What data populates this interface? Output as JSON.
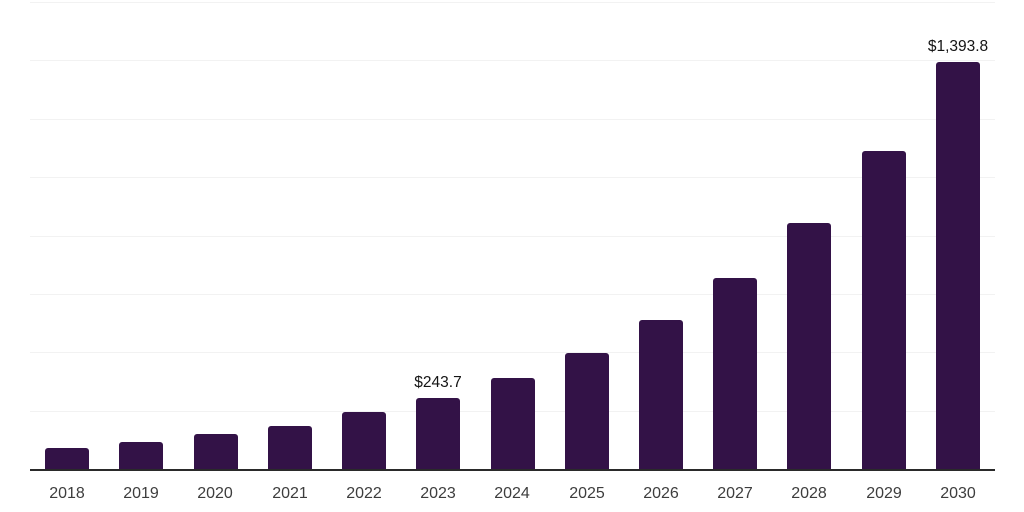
{
  "chart_data": {
    "type": "bar",
    "title": "",
    "xlabel": "",
    "ylabel": "",
    "categories": [
      "2018",
      "2019",
      "2020",
      "2021",
      "2022",
      "2023",
      "2024",
      "2025",
      "2026",
      "2027",
      "2028",
      "2029",
      "2030"
    ],
    "values": [
      71,
      93,
      120,
      146,
      194,
      243.7,
      312,
      398,
      511,
      656,
      843,
      1088,
      1393.8
    ],
    "value_labels": [
      "",
      "",
      "",
      "",
      "",
      "$243.7",
      "",
      "",
      "",
      "",
      "",
      "",
      "$1,393.8"
    ],
    "ylim": [
      0,
      1600
    ],
    "gridline_step": 200,
    "grid": true,
    "legend_position": "none",
    "y_tick_labels_visible": false
  },
  "style": {
    "bar_color": "#331247",
    "gridline_color": "#f2f2f2",
    "axis_line_color": "#2a2a2a",
    "tick_label_color": "#3d3d3d",
    "data_label_color": "#141414",
    "background_color": "#ffffff"
  }
}
